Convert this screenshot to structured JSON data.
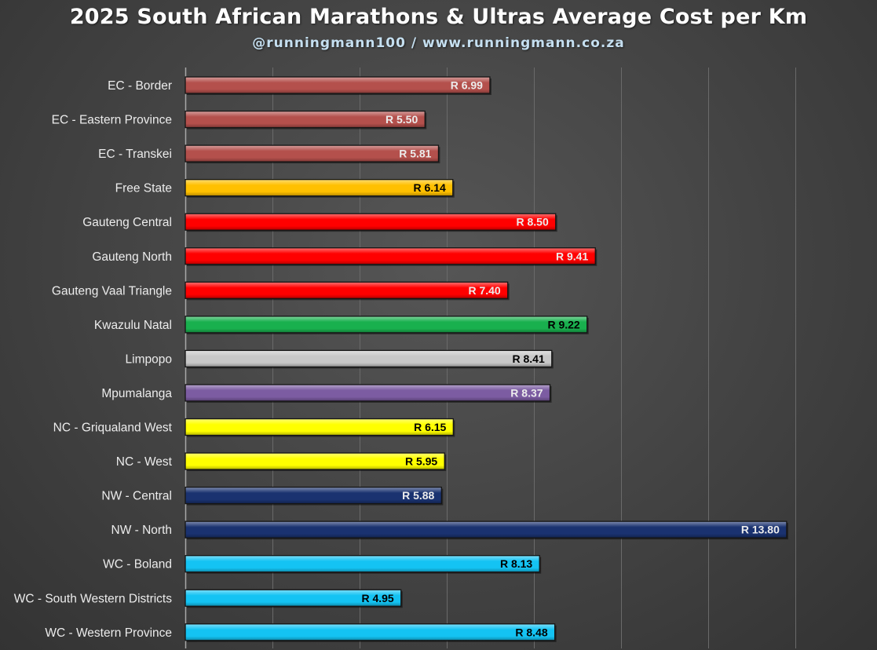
{
  "chart_data": {
    "type": "bar",
    "orientation": "horizontal",
    "title": "2025 South African Marathons & Ultras Average Cost per Km",
    "subtitle": "@runningmann100 / www.runningmann.co.za",
    "categories": [
      "EC - Border",
      "EC - Eastern Province",
      "EC - Transkei",
      "Free State",
      "Gauteng Central",
      "Gauteng North",
      "Gauteng Vaal Triangle",
      "Kwazulu Natal",
      "Limpopo",
      "Mpumalanga",
      "NC - Griqualand West",
      "NC - West ",
      "NW - Central",
      "NW - North",
      "WC - Boland",
      "WC - South Western Districts",
      "WC - Western Province"
    ],
    "values": [
      6.99,
      5.5,
      5.81,
      6.14,
      8.5,
      9.41,
      7.4,
      9.22,
      8.41,
      8.37,
      6.15,
      5.95,
      5.88,
      13.8,
      8.13,
      4.95,
      8.48
    ],
    "value_labels": [
      "R 6.99",
      "R 5.50",
      "R 5.81",
      "R 6.14",
      "R 8.50",
      "R 9.41",
      "R 7.40",
      "R 9.22",
      "R 8.41",
      "R 8.37",
      "R 6.15",
      "R 5.95",
      "R 5.88",
      "R 13.80",
      "R 8.13",
      "R 4.95",
      "R 8.48"
    ],
    "colors": [
      "#b4504c",
      "#b4504c",
      "#b4504c",
      "#ffc000",
      "#ff0000",
      "#ff0000",
      "#ff0000",
      "#19b04e",
      "#c8c8c8",
      "#7c5ca2",
      "#ffff00",
      "#ffff00",
      "#1a3270",
      "#1a3270",
      "#14c3f3",
      "#14c3f3",
      "#14c3f3"
    ],
    "label_colors": [
      "#ececec",
      "#ececec",
      "#ececec",
      "#000000",
      "#ececec",
      "#ececec",
      "#ececec",
      "#000000",
      "#000000",
      "#ececec",
      "#000000",
      "#000000",
      "#ececec",
      "#ececec",
      "#000000",
      "#000000",
      "#000000"
    ],
    "xlim": [
      0,
      14
    ],
    "xlabel": "",
    "ylabel": "",
    "grid": true,
    "legend": "none"
  }
}
